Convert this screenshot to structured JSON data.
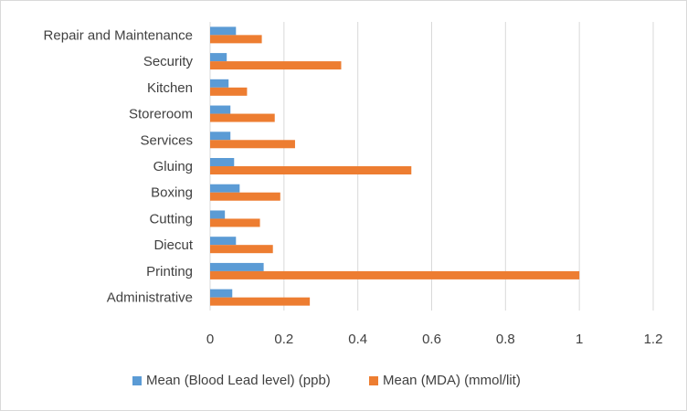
{
  "chart_data": {
    "type": "bar",
    "orientation": "horizontal",
    "categories": [
      "Administrative",
      "Printing",
      "Diecut",
      "Cutting",
      "Boxing",
      "Gluing",
      "Services",
      "Storeroom",
      "Kitchen",
      "Security",
      "Repair and Maintenance"
    ],
    "series": [
      {
        "name": "Mean (Blood Lead level) (ppb)",
        "color": "#5b9bd5",
        "values": [
          0.06,
          0.145,
          0.07,
          0.04,
          0.08,
          0.065,
          0.055,
          0.055,
          0.05,
          0.045,
          0.07
        ]
      },
      {
        "name": "Mean (MDA) (mmol/lit)",
        "color": "#ed7d31",
        "values": [
          0.27,
          1.0,
          0.17,
          0.135,
          0.19,
          0.545,
          0.23,
          0.175,
          0.1,
          0.355,
          0.14
        ]
      }
    ],
    "xlim": [
      0,
      1.2
    ],
    "xticks": [
      "0",
      "0.2",
      "0.4",
      "0.6",
      "0.8",
      "1",
      "1.2"
    ],
    "grid": true,
    "legend_position": "bottom"
  }
}
